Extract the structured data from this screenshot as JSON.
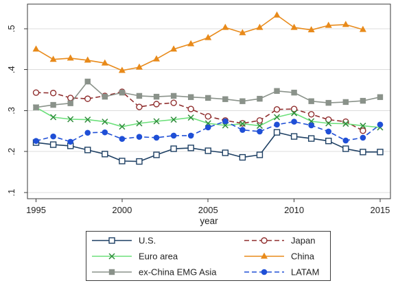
{
  "chart_data": {
    "type": "line",
    "xlabel": "year",
    "x": [
      1995,
      1996,
      1997,
      1998,
      1999,
      2000,
      2001,
      2002,
      2003,
      2004,
      2005,
      2006,
      2007,
      2008,
      2009,
      2010,
      2011,
      2012,
      2013,
      2014,
      2015
    ],
    "xlim": [
      1994.5,
      2015.6
    ],
    "ylim": [
      0.085,
      0.56
    ],
    "xticks": [
      1995,
      2000,
      2005,
      2010,
      2015
    ],
    "yticks": [
      0.1,
      0.2,
      0.3,
      0.4,
      0.5
    ],
    "ytick_labels": [
      ".1",
      ".2",
      ".3",
      ".4",
      ".5"
    ],
    "grid": true,
    "legend_position": "bottom",
    "series": [
      {
        "name": "U.S.",
        "color": "#1d3f63",
        "line_style": "solid",
        "marker": "hollow-square",
        "values": [
          0.222,
          0.217,
          0.214,
          0.204,
          0.194,
          0.177,
          0.176,
          0.192,
          0.207,
          0.209,
          0.202,
          0.197,
          0.186,
          0.192,
          0.247,
          0.237,
          0.232,
          0.226,
          0.207,
          0.199,
          0.199
        ]
      },
      {
        "name": "Japan",
        "color": "#8f2d2d",
        "line_style": "dashed",
        "marker": "hollow-circle",
        "values": [
          0.344,
          0.343,
          0.331,
          0.329,
          0.336,
          0.346,
          0.309,
          0.316,
          0.319,
          0.304,
          0.286,
          0.276,
          0.269,
          0.276,
          0.303,
          0.304,
          0.291,
          0.278,
          0.273,
          0.251,
          null
        ]
      },
      {
        "name": "Euro area",
        "color": "#6be07a",
        "marker_color": "#2e8b3a",
        "line_style": "solid",
        "marker": "x",
        "values": [
          0.308,
          0.284,
          0.279,
          0.278,
          0.273,
          0.261,
          0.269,
          0.274,
          0.278,
          0.283,
          0.269,
          0.264,
          0.268,
          0.263,
          0.284,
          0.294,
          0.274,
          0.269,
          0.268,
          0.263,
          0.259
        ]
      },
      {
        "name": "China",
        "color": "#e88a1a",
        "line_style": "solid",
        "marker": "triangle",
        "values": [
          0.45,
          0.425,
          0.428,
          0.423,
          0.416,
          0.398,
          0.406,
          0.426,
          0.45,
          0.463,
          0.478,
          0.503,
          0.49,
          0.503,
          0.533,
          0.503,
          0.497,
          0.508,
          0.51,
          0.498,
          null
        ]
      },
      {
        "name": "ex-China EMG Asia",
        "color": "#8a928a",
        "line_style": "solid",
        "marker": "square",
        "values": [
          0.308,
          0.314,
          0.318,
          0.371,
          0.334,
          0.344,
          0.336,
          0.334,
          0.336,
          0.333,
          0.331,
          0.328,
          0.323,
          0.329,
          0.348,
          0.344,
          0.323,
          0.319,
          0.321,
          0.324,
          0.333
        ]
      },
      {
        "name": "LATAM",
        "color": "#1f4fd6",
        "line_style": "dashed",
        "marker": "circle",
        "values": [
          0.226,
          0.237,
          0.224,
          0.246,
          0.247,
          0.231,
          0.236,
          0.234,
          0.239,
          0.239,
          0.259,
          0.274,
          0.253,
          0.249,
          0.266,
          0.273,
          0.264,
          0.249,
          0.227,
          0.234,
          0.266
        ]
      }
    ]
  }
}
